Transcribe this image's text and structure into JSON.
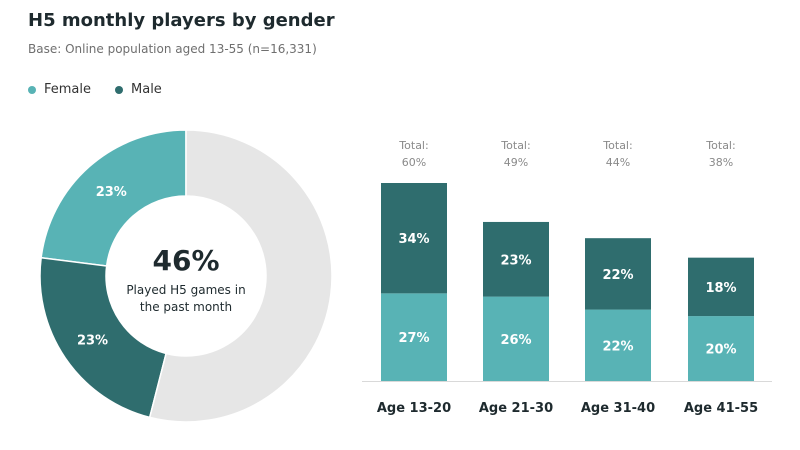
{
  "title": "H5 monthly players by gender",
  "subtitle": "Base: Online population aged 13-55 (n=16,331)",
  "legend": [
    {
      "label": "Female",
      "color": "#58b3b5"
    },
    {
      "label": "Male",
      "color": "#2f6d6e"
    }
  ],
  "colors": {
    "female": "#58b3b5",
    "male": "#2f6d6e",
    "remainder": "#e6e6e6",
    "total_text": "#8a8a8a",
    "label_text": "#ffffff",
    "center_text": "#1e2a2e",
    "axis_line": "#d9d9d9"
  },
  "chart_data": [
    {
      "type": "pie",
      "variant": "donut",
      "center_value": "46%",
      "center_label": "Played H5 games in the past month",
      "slices": [
        {
          "name": "Female",
          "value": 23,
          "label": "23%",
          "color": "#58b3b5"
        },
        {
          "name": "Male",
          "value": 23,
          "label": "23%",
          "color": "#2f6d6e"
        },
        {
          "name": "",
          "value": 54,
          "label": "",
          "color": "#e6e6e6"
        }
      ]
    },
    {
      "type": "bar",
      "stacked": true,
      "categories": [
        "Age 13-20",
        "Age 21-30",
        "Age 31-40",
        "Age 41-55"
      ],
      "series": [
        {
          "name": "Female",
          "values": [
            27,
            26,
            22,
            20
          ],
          "labels": [
            "27%",
            "26%",
            "22%",
            "20%"
          ],
          "color": "#58b3b5"
        },
        {
          "name": "Male",
          "values": [
            34,
            23,
            22,
            18
          ],
          "labels": [
            "34%",
            "23%",
            "22%",
            "18%"
          ],
          "color": "#2f6d6e"
        }
      ],
      "totals_label": "Total:",
      "totals": [
        "60%",
        "49%",
        "44%",
        "38%"
      ],
      "ylim": [
        0,
        61
      ],
      "grid": false
    }
  ]
}
